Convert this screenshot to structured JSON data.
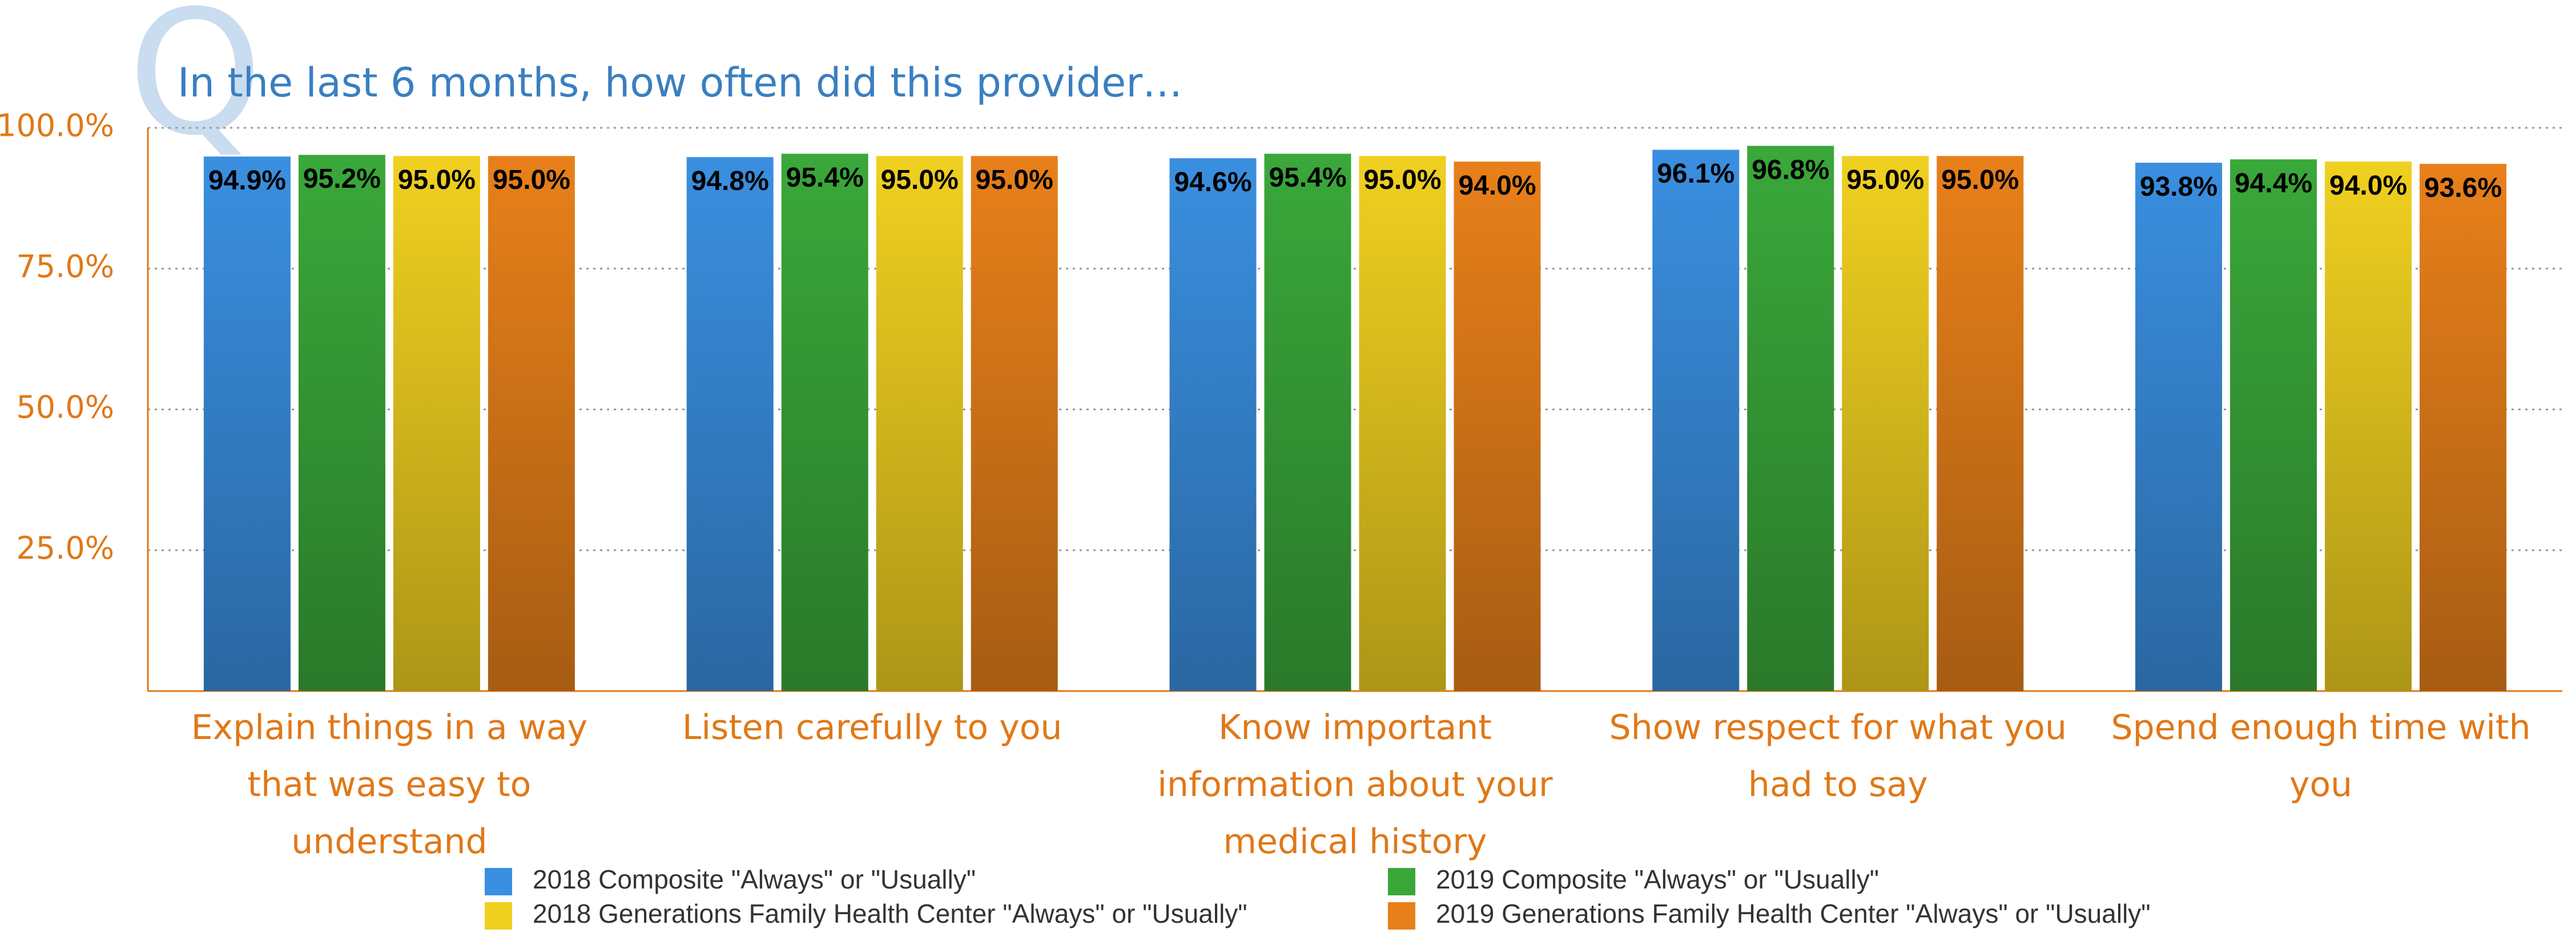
{
  "chart_data": {
    "type": "bar",
    "watermark": "Q",
    "title": "In the last 6 months, how often did this provider…",
    "categories": [
      "Explain things in a way that was easy to understand",
      "Listen carefully to you",
      "Know important information about your medical history",
      "Show respect for what you had to say",
      "Spend enough time with you"
    ],
    "series": [
      {
        "name": "2018 Composite \"Always\" or \"Usually\"",
        "color": "#3a8fe0",
        "values": [
          94.9,
          94.8,
          94.6,
          96.1,
          93.8
        ],
        "value_labels": [
          "94.9%",
          "94.8%",
          "94.6%",
          "96.1%",
          "93.8%"
        ]
      },
      {
        "name": "2019 Composite \"Always\" or \"Usually\"",
        "color": "#3aa83a",
        "values": [
          95.2,
          95.4,
          95.4,
          96.8,
          94.4
        ],
        "value_labels": [
          "95.2%",
          "95.4%",
          "95.4%",
          "96.8%",
          "94.4%"
        ]
      },
      {
        "name": "2018 Generations Family Health Center \"Always\" or \"Usually\"",
        "color": "#f0d020",
        "values": [
          95.0,
          95.0,
          95.0,
          95.0,
          94.0
        ],
        "value_labels": [
          "95.0%",
          "95.0%",
          "95.0%",
          "95.0%",
          "94.0%"
        ]
      },
      {
        "name": "2019 Generations Family Health Center \"Always\" or \"Usually\"",
        "color": "#e8801a",
        "values": [
          95.0,
          95.0,
          94.0,
          95.0,
          93.6
        ],
        "value_labels": [
          "95.0%",
          "95.0%",
          "94.0%",
          "95.0%",
          "93.6%"
        ]
      }
    ],
    "ylim": [
      0,
      100
    ],
    "yticks": [
      {
        "value": 25,
        "label": "25.0%"
      },
      {
        "value": 50,
        "label": "50.0%"
      },
      {
        "value": 75,
        "label": "75.0%"
      },
      {
        "value": 100,
        "label": "100.0%"
      }
    ],
    "grid": true
  }
}
